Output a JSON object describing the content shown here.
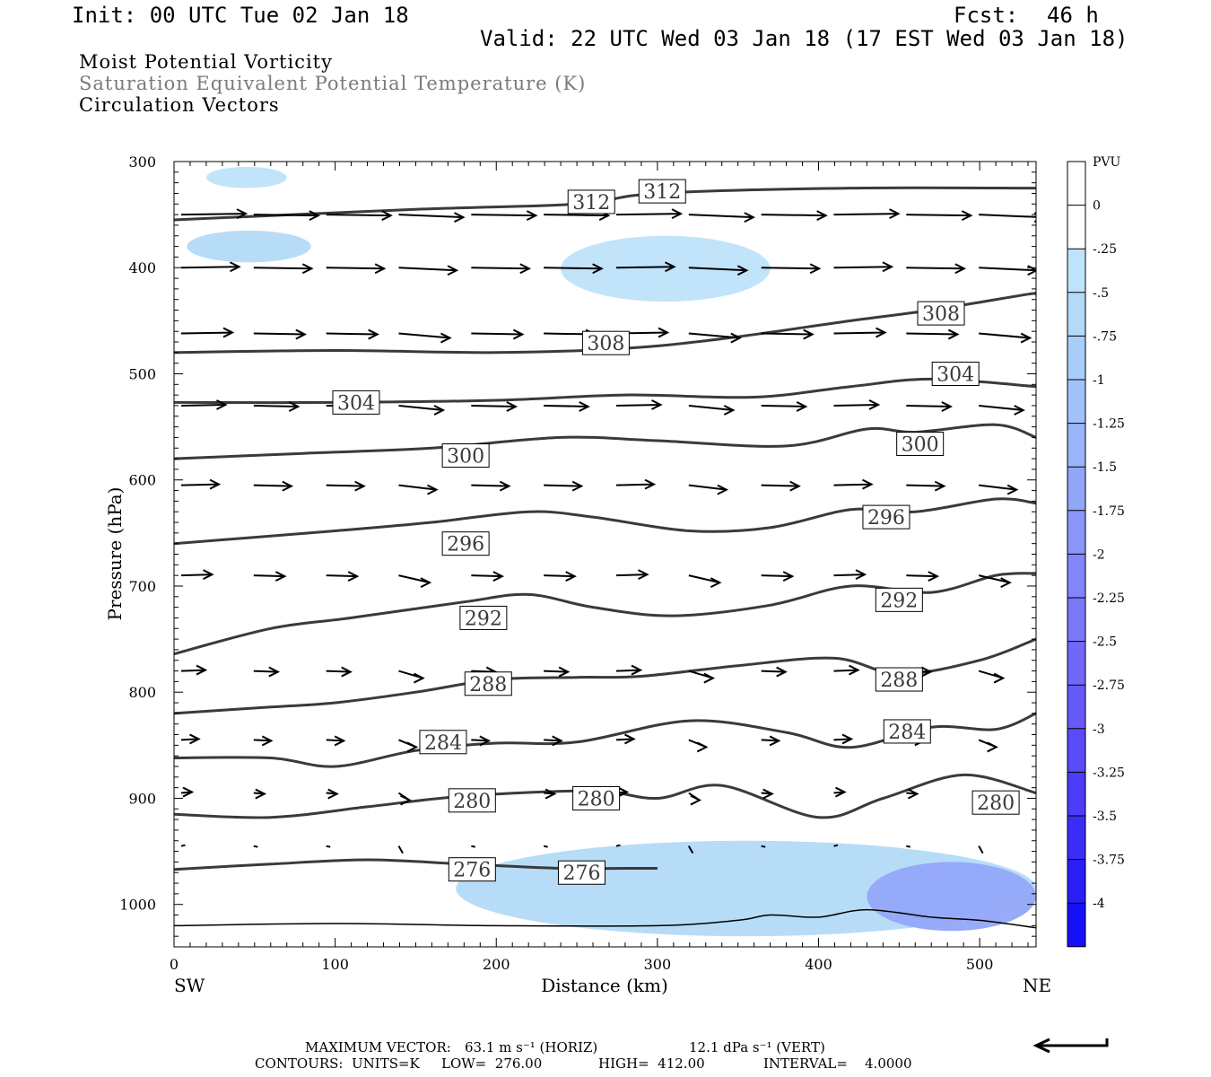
{
  "header": {
    "init": "Init: 00 UTC Tue 02 Jan 18",
    "fcst_label": "Fcst:",
    "fcst_value": "46 h",
    "valid": "Valid: 22 UTC Wed 03 Jan 18 (17 EST Wed 03 Jan 18)"
  },
  "fields": {
    "line1": "Moist Potential Vorticity",
    "line2": "Saturation Equivalent Potential Temperature (K)",
    "line3": "Circulation Vectors"
  },
  "footer": {
    "max_vector_label": "MAXIMUM VECTOR:",
    "max_vector_horiz": "63.1 m s⁻¹ (HORIZ)",
    "max_vector_vert": "12.1 dPa s⁻¹ (VERT)",
    "contours_units": "CONTOURS:  UNITS=K",
    "contours_low": "LOW=  276.00",
    "contours_high": "HIGH=  412.00",
    "contours_interval": "INTERVAL=    4.0000"
  },
  "colorbar": {
    "title": "PVU",
    "labels": [
      "0",
      "-.25",
      "-.5",
      "-.75",
      "-1",
      "-1.25",
      "-1.5",
      "-1.75",
      "-2",
      "-2.25",
      "-2.5",
      "-2.75",
      "-3",
      "-3.25",
      "-3.5",
      "-3.75",
      "-4"
    ],
    "colors": [
      "#ffffff",
      "#ffffff",
      "#bfe3fb",
      "#b3daf8",
      "#a9cef8",
      "#a1c2f8",
      "#99b4f8",
      "#92a6f8",
      "#8a96f8",
      "#8286f8",
      "#7a77f8",
      "#7168f8",
      "#6659f8",
      "#5a4af8",
      "#4c3bf8",
      "#3c2cf8",
      "#2a1ef8",
      "#1410f8"
    ]
  },
  "chart_data": {
    "type": "contour",
    "xlabel": "Distance (km)",
    "ylabel": "Pressure (hPa)",
    "x_left_label": "SW",
    "x_right_label": "NE",
    "xlim": [
      0,
      535
    ],
    "ylim": [
      1040,
      300
    ],
    "xticks": [
      0,
      100,
      200,
      300,
      400,
      500
    ],
    "yticks": [
      300,
      400,
      500,
      600,
      700,
      800,
      900,
      1000
    ],
    "contour_units": "K",
    "contour_low": 276,
    "contour_high": 412,
    "contour_interval": 4,
    "theta_es_contours": [
      {
        "level": 276,
        "points": [
          [
            0,
            967
          ],
          [
            60,
            962
          ],
          [
            120,
            958
          ],
          [
            180,
            962
          ],
          [
            240,
            966
          ],
          [
            280,
            966
          ],
          [
            300,
            966
          ]
        ],
        "labels": [
          [
            185,
            967
          ],
          [
            253,
            970
          ]
        ]
      },
      {
        "level": 280,
        "points": [
          [
            0,
            915
          ],
          [
            60,
            918
          ],
          [
            120,
            908
          ],
          [
            180,
            898
          ],
          [
            260,
            893
          ],
          [
            300,
            900
          ],
          [
            340,
            888
          ],
          [
            400,
            918
          ],
          [
            440,
            900
          ],
          [
            490,
            878
          ],
          [
            535,
            895
          ]
        ],
        "labels": [
          [
            185,
            902
          ],
          [
            262,
            900
          ],
          [
            510,
            904
          ]
        ]
      },
      {
        "level": 284,
        "points": [
          [
            0,
            862
          ],
          [
            60,
            862
          ],
          [
            100,
            870
          ],
          [
            150,
            855
          ],
          [
            200,
            848
          ],
          [
            250,
            847
          ],
          [
            320,
            827
          ],
          [
            380,
            838
          ],
          [
            420,
            852
          ],
          [
            470,
            833
          ],
          [
            510,
            835
          ],
          [
            535,
            820
          ]
        ],
        "labels": [
          [
            167,
            847
          ],
          [
            455,
            837
          ]
        ]
      },
      {
        "level": 288,
        "points": [
          [
            0,
            820
          ],
          [
            60,
            814
          ],
          [
            100,
            810
          ],
          [
            150,
            800
          ],
          [
            200,
            788
          ],
          [
            250,
            786
          ],
          [
            290,
            785
          ],
          [
            350,
            775
          ],
          [
            410,
            768
          ],
          [
            450,
            783
          ],
          [
            500,
            770
          ],
          [
            535,
            750
          ]
        ],
        "labels": [
          [
            195,
            792
          ],
          [
            450,
            788
          ]
        ]
      },
      {
        "level": 292,
        "points": [
          [
            0,
            764
          ],
          [
            60,
            740
          ],
          [
            110,
            730
          ],
          [
            180,
            715
          ],
          [
            220,
            708
          ],
          [
            260,
            720
          ],
          [
            310,
            728
          ],
          [
            370,
            718
          ],
          [
            420,
            700
          ],
          [
            470,
            706
          ],
          [
            510,
            690
          ],
          [
            535,
            688
          ]
        ],
        "labels": [
          [
            192,
            730
          ],
          [
            450,
            713
          ]
        ]
      },
      {
        "level": 296,
        "points": [
          [
            0,
            660
          ],
          [
            100,
            648
          ],
          [
            160,
            640
          ],
          [
            220,
            630
          ],
          [
            260,
            635
          ],
          [
            320,
            648
          ],
          [
            370,
            645
          ],
          [
            420,
            628
          ],
          [
            460,
            630
          ],
          [
            510,
            618
          ],
          [
            535,
            622
          ]
        ],
        "labels": [
          [
            181,
            660
          ],
          [
            442,
            635
          ]
        ]
      },
      {
        "level": 300,
        "points": [
          [
            0,
            580
          ],
          [
            80,
            575
          ],
          [
            160,
            570
          ],
          [
            240,
            560
          ],
          [
            300,
            563
          ],
          [
            380,
            568
          ],
          [
            430,
            552
          ],
          [
            460,
            555
          ],
          [
            510,
            548
          ],
          [
            535,
            560
          ]
        ],
        "labels": [
          [
            181,
            577
          ],
          [
            463,
            566
          ]
        ]
      },
      {
        "level": 304,
        "points": [
          [
            0,
            527
          ],
          [
            100,
            527
          ],
          [
            200,
            525
          ],
          [
            280,
            520
          ],
          [
            360,
            522
          ],
          [
            420,
            512
          ],
          [
            470,
            505
          ],
          [
            535,
            512
          ]
        ],
        "labels": [
          [
            113,
            527
          ],
          [
            485,
            500
          ]
        ]
      },
      {
        "level": 308,
        "points": [
          [
            0,
            480
          ],
          [
            100,
            478
          ],
          [
            200,
            480
          ],
          [
            280,
            476
          ],
          [
            340,
            467
          ],
          [
            420,
            450
          ],
          [
            470,
            440
          ],
          [
            530,
            425
          ],
          [
            535,
            425
          ]
        ],
        "labels": [
          [
            268,
            471
          ],
          [
            476,
            443
          ]
        ]
      },
      {
        "level": 312,
        "points": [
          [
            0,
            355
          ],
          [
            150,
            345
          ],
          [
            250,
            340
          ],
          [
            300,
            330
          ],
          [
            420,
            325
          ],
          [
            535,
            325
          ]
        ],
        "labels": [
          [
            259,
            338
          ],
          [
            303,
            328
          ]
        ]
      }
    ],
    "mpv_shading": [
      {
        "level": -0.25,
        "region": "upper-left",
        "x": [
          20,
          70
        ],
        "p": [
          305,
          325
        ]
      },
      {
        "level": -0.5,
        "region": "left",
        "x": [
          8,
          85
        ],
        "p": [
          365,
          395
        ]
      },
      {
        "level": -0.25,
        "region": "center",
        "x": [
          240,
          370
        ],
        "p": [
          370,
          432
        ]
      },
      {
        "level": -0.5,
        "region": "boundary-layer",
        "x": [
          175,
          535
        ],
        "p": [
          940,
          1030
        ]
      },
      {
        "level": -1.5,
        "region": "near-surface-right",
        "x": [
          430,
          535
        ],
        "p": [
          960,
          1025
        ]
      }
    ],
    "vector_levels_hPa": [
      350,
      400,
      462,
      530,
      605,
      690,
      780,
      845,
      895,
      945
    ],
    "vector_x_km": [
      0,
      45,
      90,
      135,
      180,
      225,
      270,
      315,
      360,
      405,
      450,
      495
    ],
    "max_vector_horiz_m_s": 63.1,
    "max_vector_vert_dPa_s": 12.1
  }
}
